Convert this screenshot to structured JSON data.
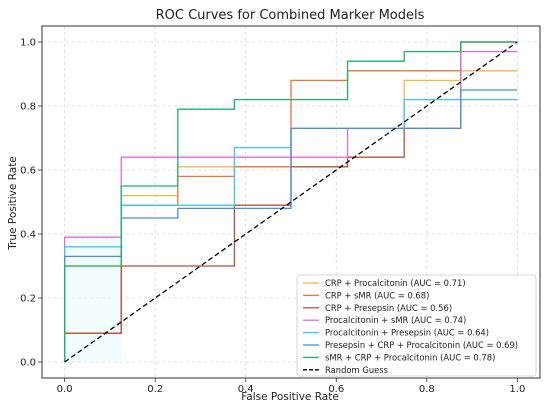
{
  "chart_data": {
    "type": "line",
    "title": "ROC Curves for Combined Marker Models",
    "xlabel": "False Positive Rate",
    "ylabel": "True Positive Rate",
    "xlim": [
      -0.05,
      1.05
    ],
    "ylim": [
      -0.05,
      1.05
    ],
    "xticks": [
      "0.0",
      "0.2",
      "0.4",
      "0.6",
      "0.8",
      "1.0"
    ],
    "yticks": [
      "0.0",
      "0.2",
      "0.4",
      "0.6",
      "0.8",
      "1.0"
    ],
    "grid": true,
    "legend_position": "lower-right",
    "series": [
      {
        "name": "CRP + Procalcitonin (AUC = 0.71)",
        "color": "#f5b942",
        "x": [
          0,
          0,
          0.125,
          0.125,
          0.25,
          0.25,
          0.5,
          0.5,
          0.75,
          0.75,
          0.875,
          0.875,
          1.0
        ],
        "y": [
          0,
          0.3,
          0.3,
          0.52,
          0.52,
          0.61,
          0.61,
          0.73,
          0.73,
          0.88,
          0.88,
          0.91,
          0.91
        ]
      },
      {
        "name": "CRP + sMR (AUC = 0.68)",
        "color": "#f0743a",
        "x": [
          0,
          0,
          0.125,
          0.125,
          0.25,
          0.25,
          0.375,
          0.375,
          0.5,
          0.5,
          0.625,
          0.625,
          0.875,
          0.875,
          1.0
        ],
        "y": [
          0,
          0.09,
          0.09,
          0.49,
          0.49,
          0.58,
          0.58,
          0.61,
          0.61,
          0.88,
          0.88,
          0.91,
          0.91,
          1.0,
          1.0
        ]
      },
      {
        "name": "CRP + Presepsin (AUC = 0.56)",
        "color": "#b5523b",
        "x": [
          0,
          0,
          0.125,
          0.125,
          0.375,
          0.375,
          0.5,
          0.5,
          0.625,
          0.625,
          0.75,
          0.75,
          0.875,
          0.875,
          1.0
        ],
        "y": [
          0,
          0.09,
          0.09,
          0.3,
          0.3,
          0.49,
          0.49,
          0.61,
          0.61,
          0.64,
          0.64,
          0.73,
          0.73,
          1.0,
          1.0
        ]
      },
      {
        "name": "Procalcitonin + sMR (AUC = 0.74)",
        "color": "#e06ed6",
        "x": [
          0,
          0,
          0.125,
          0.125,
          0.375,
          0.375,
          0.625,
          0.625,
          0.875,
          0.875,
          1.0
        ],
        "y": [
          0,
          0.39,
          0.39,
          0.64,
          0.64,
          0.64,
          0.64,
          0.73,
          0.73,
          0.97,
          0.97
        ]
      },
      {
        "name": "Procalcitonin + Presepsin (AUC = 0.64)",
        "color": "#3ec7e6",
        "x": [
          0,
          0,
          0.125,
          0.125,
          0.25,
          0.25,
          0.375,
          0.375,
          0.5,
          0.5,
          0.75,
          0.75,
          1.0
        ],
        "y": [
          0,
          0.36,
          0.36,
          0.49,
          0.49,
          0.49,
          0.49,
          0.67,
          0.67,
          0.73,
          0.73,
          0.82,
          0.82
        ]
      },
      {
        "name": "Presepsin + CRP + Procalcitonin (AUC = 0.69)",
        "color": "#4a8fd8",
        "x": [
          0,
          0,
          0.125,
          0.125,
          0.25,
          0.25,
          0.5,
          0.5,
          0.875,
          0.875,
          1.0
        ],
        "y": [
          0,
          0.33,
          0.33,
          0.45,
          0.45,
          0.48,
          0.48,
          0.73,
          0.73,
          0.85,
          0.85
        ]
      },
      {
        "name": "sMR + CRP + Procalcitonin (AUC = 0.78)",
        "color": "#1db36b",
        "x": [
          0,
          0,
          0.125,
          0.125,
          0.25,
          0.25,
          0.375,
          0.375,
          0.625,
          0.625,
          0.75,
          0.75,
          0.875,
          0.875,
          1.0
        ],
        "y": [
          0,
          0.3,
          0.3,
          0.55,
          0.55,
          0.79,
          0.79,
          0.82,
          0.82,
          0.94,
          0.94,
          0.97,
          0.97,
          1.0,
          1.0
        ]
      },
      {
        "name": "Random Guess",
        "color": "#000000",
        "dashed": true,
        "x": [
          0,
          1
        ],
        "y": [
          0,
          1
        ]
      }
    ]
  }
}
